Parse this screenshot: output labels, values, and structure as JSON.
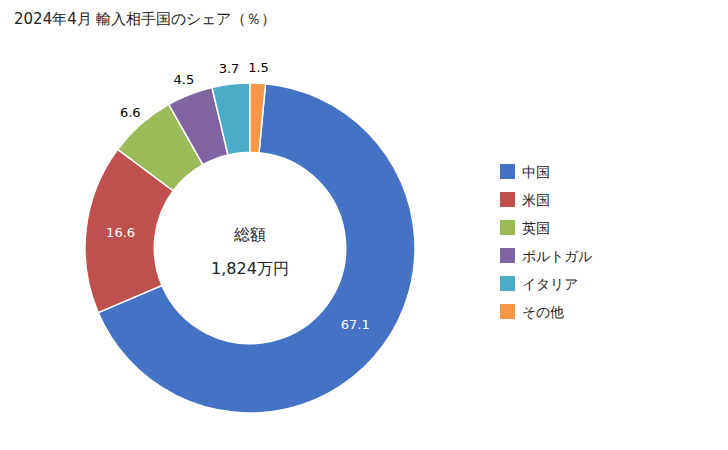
{
  "chart_data": {
    "type": "donut",
    "title": "2024年4月 輸入相手国のシェア（％）",
    "categories": [
      "中国",
      "米国",
      "英国",
      "ボルトガル",
      "イタリア",
      "その他"
    ],
    "values": [
      67.1,
      16.6,
      6.6,
      4.5,
      3.7,
      1.5
    ],
    "colors": [
      "#4472C4",
      "#C0504D",
      "#9BBB59",
      "#8064A2",
      "#4BACC6",
      "#F79646"
    ],
    "data_labels": true,
    "legend": "right",
    "annotations": [
      "総額",
      "1,824万円"
    ]
  }
}
